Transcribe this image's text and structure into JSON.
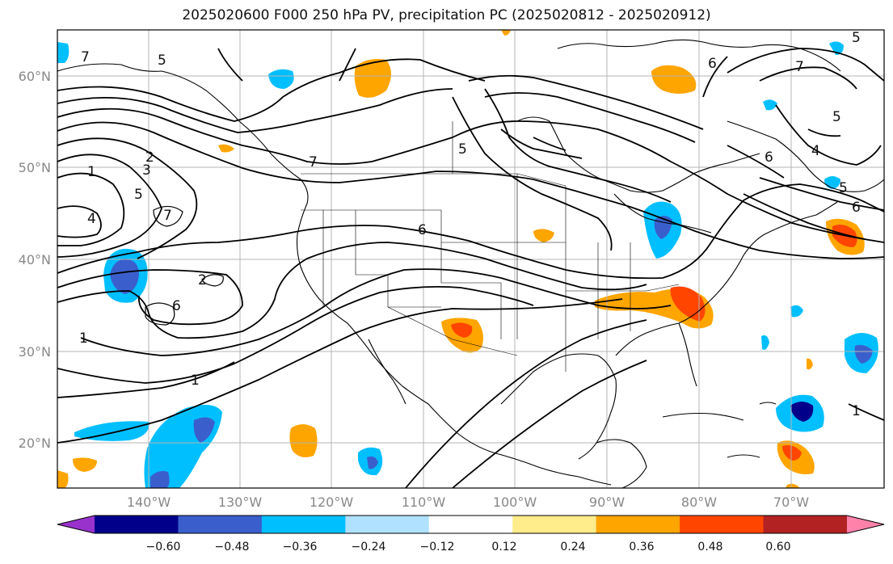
{
  "title": "2025020600 F000 250 hPa PV, precipitation PC (2025020812 - 2025020912)",
  "lat_labels": [
    "60°N",
    "50°N",
    "40°N",
    "30°N",
    "20°N"
  ],
  "lon_labels": [
    "140°W",
    "130°W",
    "120°W",
    "110°W",
    "100°W",
    "90°W",
    "80°W",
    "70°W"
  ],
  "pv_labels": [
    "7",
    "5",
    "1",
    "2",
    "3",
    "5",
    "4",
    "7",
    "7",
    "6",
    "2",
    "6",
    "1",
    "1",
    "5",
    "6",
    "5",
    "6",
    "4",
    "5",
    "6",
    "5",
    "1",
    "7"
  ],
  "colorbar": {
    "ticks": [
      "−0.60",
      "−0.48",
      "−0.36",
      "−0.24",
      "−0.12",
      "0.12",
      "0.24",
      "0.36",
      "0.48",
      "0.60"
    ],
    "colors": [
      "#9932cc",
      "#00008b",
      "#3a5fcd",
      "#00bfff",
      "#b0e2ff",
      "#ffffff",
      "#ffec8b",
      "#ffa500",
      "#ff4500",
      "#b22222",
      "#ff82ab"
    ]
  }
}
